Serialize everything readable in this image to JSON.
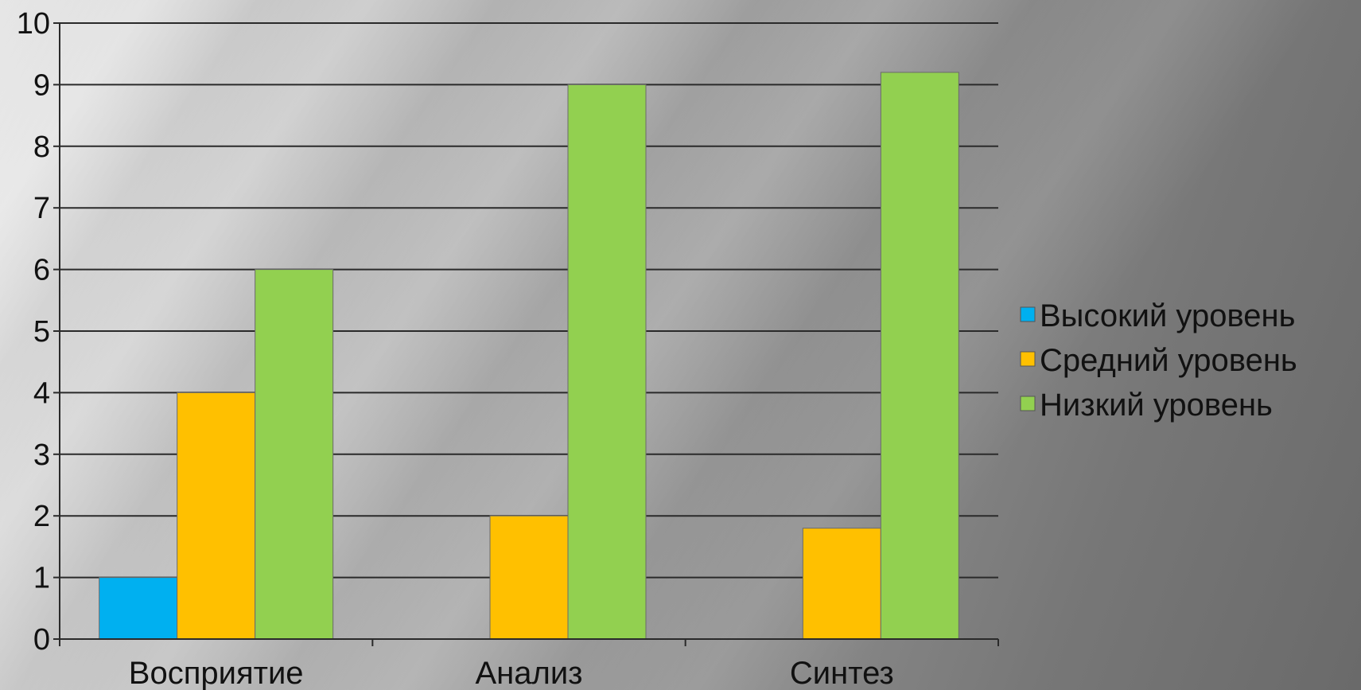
{
  "chart_data": {
    "type": "bar",
    "categories": [
      "Восприятие",
      "Анализ",
      "Синтез"
    ],
    "series": [
      {
        "name": "Высокий уровень",
        "color": "#00b0f0",
        "values": [
          1,
          0,
          0
        ]
      },
      {
        "name": "Средний уровень",
        "color": "#ffc000",
        "values": [
          4,
          2,
          1.8
        ]
      },
      {
        "name": "Низкий уровень",
        "color": "#92d050",
        "values": [
          6,
          9,
          9.2
        ]
      }
    ],
    "ylim": [
      0,
      10
    ],
    "yticks": [
      "0",
      "1",
      "2",
      "3",
      "4",
      "5",
      "6",
      "7",
      "8",
      "9",
      "10"
    ],
    "grid": true,
    "legend_position": "right"
  }
}
